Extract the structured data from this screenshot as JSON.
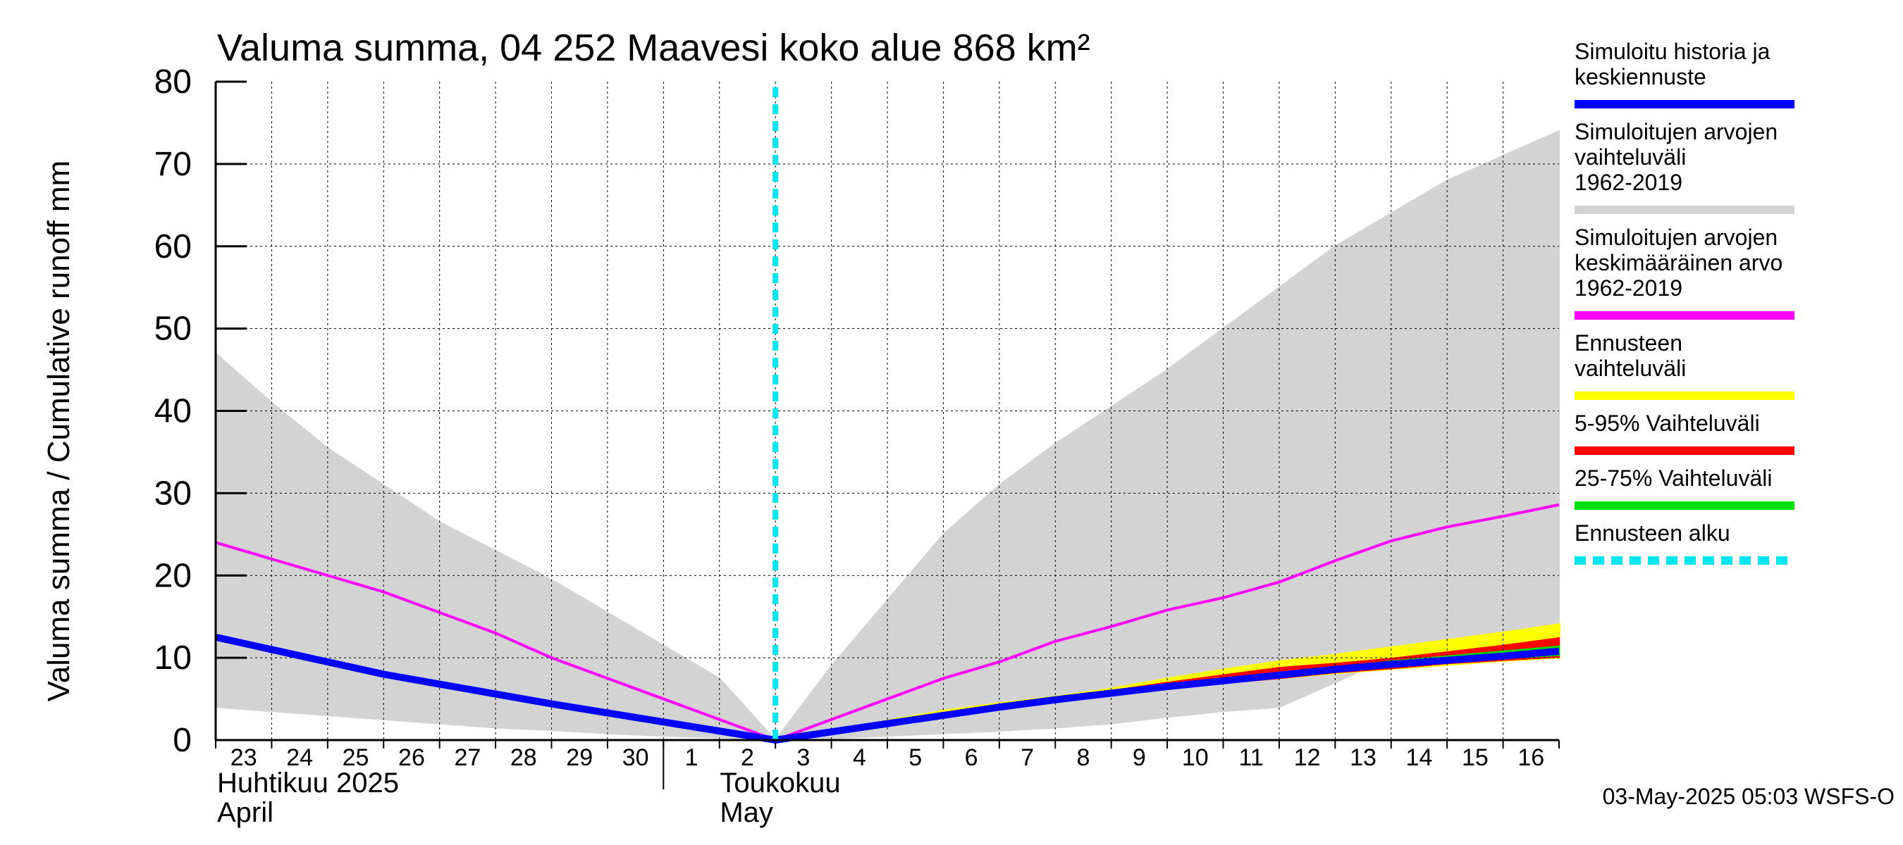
{
  "chart_data": {
    "type": "area",
    "title": "Valuma summa, 04 252 Maavesi koko alue 868 km²",
    "ylabel": "Valuma summa / Cumulative runoff    mm",
    "ylim": [
      0,
      80
    ],
    "yticks": [
      "0",
      "10",
      "20",
      "30",
      "40",
      "50",
      "60",
      "70",
      "80"
    ],
    "grid": true,
    "legend_position": "right",
    "days": [
      "23",
      "24",
      "25",
      "26",
      "27",
      "28",
      "29",
      "30",
      "1",
      "2",
      "3",
      "4",
      "5",
      "6",
      "7",
      "8",
      "9",
      "10",
      "11",
      "12",
      "13",
      "14",
      "15",
      "16"
    ],
    "month_labels": [
      {
        "fi": "Huhtikuu  2025",
        "en": "April"
      },
      {
        "fi": "Toukokuu",
        "en": "May"
      }
    ],
    "forecast_start_day_index": 10,
    "x": [
      0,
      1,
      2,
      3,
      4,
      5,
      6,
      7,
      8,
      9,
      10,
      11,
      12,
      13,
      14,
      15,
      16,
      17,
      18,
      19,
      20,
      21,
      22,
      23,
      24
    ],
    "series": [
      {
        "name": "Simuloitujen arvojen vaihteluväli 1962-2019",
        "color": "#d3d3d3",
        "kind": "band",
        "upper": [
          47,
          41,
          35.5,
          31,
          26.5,
          23,
          19.5,
          15.5,
          11.5,
          7.5,
          0,
          9,
          17,
          25,
          31,
          36,
          40.5,
          45,
          50,
          55,
          60,
          64,
          68,
          71,
          74
        ],
        "lower": [
          4,
          3.5,
          3,
          2.5,
          2,
          1.5,
          1.2,
          0.8,
          0.5,
          0.3,
          0,
          0.2,
          0.5,
          0.8,
          1.1,
          1.5,
          2,
          2.8,
          3.5,
          4,
          7,
          10,
          11.5,
          12,
          12.5
        ]
      },
      {
        "name": "Simuloitujen arvojen keskimääräinen arvo 1962-2019",
        "color": "#ff00ff",
        "kind": "line",
        "values": [
          24,
          22,
          20,
          18,
          15.5,
          13,
          10,
          7.5,
          5,
          2.5,
          0,
          2.5,
          5,
          7.5,
          9.5,
          12,
          13.8,
          15.8,
          17.3,
          19.2,
          21.8,
          24.2,
          25.9,
          27.2,
          28.6
        ]
      },
      {
        "name": "Ennusteen vaihteluväli",
        "color": "#ffff00",
        "kind": "band",
        "upper": [
          null,
          null,
          null,
          null,
          null,
          null,
          null,
          null,
          null,
          null,
          0,
          1.2,
          2.4,
          3.6,
          4.5,
          5.3,
          6.3,
          7.5,
          8.6,
          9.6,
          10.4,
          11.3,
          12.2,
          13.1,
          14.1
        ],
        "lower": [
          null,
          null,
          null,
          null,
          null,
          null,
          null,
          null,
          null,
          null,
          0,
          1,
          2,
          3,
          4,
          4.9,
          5.6,
          6.2,
          6.9,
          7.5,
          8.1,
          8.6,
          9.1,
          9.6,
          10
        ]
      },
      {
        "name": "5-95% Vaihteluväli",
        "color": "#ff0000",
        "kind": "band",
        "upper": [
          null,
          null,
          null,
          null,
          null,
          null,
          null,
          null,
          null,
          null,
          0,
          1.1,
          2.2,
          3.3,
          4.2,
          5.1,
          6,
          7,
          7.9,
          8.8,
          9.3,
          9.9,
          10.7,
          11.5,
          12.4
        ],
        "lower": [
          null,
          null,
          null,
          null,
          null,
          null,
          null,
          null,
          null,
          null,
          0,
          1,
          2,
          3,
          4,
          4.9,
          5.6,
          6.2,
          6.9,
          7.5,
          8.2,
          8.7,
          9.3,
          9.7,
          10.1
        ]
      },
      {
        "name": "25-75% Vaihteluväli",
        "color": "#00dd00",
        "kind": "band",
        "upper": [
          null,
          null,
          null,
          null,
          null,
          null,
          null,
          null,
          null,
          null,
          0,
          1.05,
          2.1,
          3.15,
          4.1,
          5,
          5.8,
          6.6,
          7.4,
          8.1,
          8.8,
          9.6,
          10.2,
          10.8,
          11.4
        ],
        "lower": [
          null,
          null,
          null,
          null,
          null,
          null,
          null,
          null,
          null,
          null,
          0,
          1,
          2,
          3,
          4,
          4.9,
          5.6,
          6.3,
          7,
          7.7,
          8.4,
          9,
          9.5,
          9.9,
          10.3
        ]
      },
      {
        "name": "Simuloitu historia ja keskiennuste",
        "color": "#0000ff",
        "kind": "line",
        "values": [
          12.5,
          11,
          9.5,
          8,
          6.8,
          5.6,
          4.4,
          3.3,
          2.2,
          1.1,
          0,
          1,
          2,
          3,
          4,
          4.9,
          5.7,
          6.5,
          7.2,
          7.9,
          8.6,
          9.2,
          9.7,
          10.2,
          10.8
        ]
      }
    ],
    "legend": [
      {
        "label": "Simuloitu historia ja keskiennuste",
        "color": "#0000ff",
        "style": "solid"
      },
      {
        "label": "Simuloitujen arvojen vaihteluväli 1962-2019",
        "color": "#d3d3d3",
        "style": "solid"
      },
      {
        "label": "Simuloitujen arvojen keskimääräinen arvo 1962-2019",
        "color": "#ff00ff",
        "style": "solid"
      },
      {
        "label": "Ennusteen vaihteluväli",
        "color": "#ffff00",
        "style": "solid"
      },
      {
        "label": "5-95% Vaihteluväli",
        "color": "#ff0000",
        "style": "solid"
      },
      {
        "label": "25-75% Vaihteluväli",
        "color": "#00dd00",
        "style": "solid"
      },
      {
        "label": "Ennusteen alku",
        "color": "#00e5ee",
        "style": "dashed"
      }
    ],
    "timestamp": "03-May-2025 05:03 WSFS-O"
  }
}
